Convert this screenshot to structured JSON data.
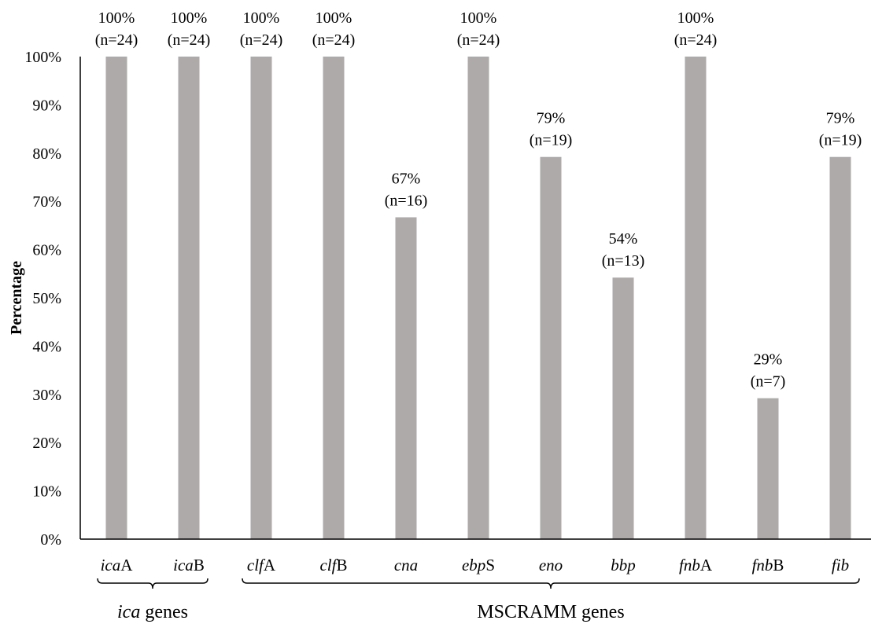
{
  "chart_data": {
    "type": "bar",
    "ylabel": "Percentage",
    "xlabel": "",
    "ylim": [
      0,
      100
    ],
    "y_ticks": [
      "0%",
      "10%",
      "20%",
      "30%",
      "40%",
      "50%",
      "60%",
      "70%",
      "80%",
      "90%",
      "100%"
    ],
    "bar_color": "#aeaaaa",
    "categories": [
      {
        "italic": "ica",
        "plain": "A"
      },
      {
        "italic": "ica",
        "plain": "B"
      },
      {
        "italic": "clf",
        "plain": "A"
      },
      {
        "italic": "clf",
        "plain": "B"
      },
      {
        "italic": "cna",
        "plain": ""
      },
      {
        "italic": "ebp",
        "plain": "S"
      },
      {
        "italic": "eno",
        "plain": ""
      },
      {
        "italic": "bbp",
        "plain": ""
      },
      {
        "italic": "fnb",
        "plain": "A"
      },
      {
        "italic": "fnb",
        "plain": "B"
      },
      {
        "italic": "fib",
        "plain": ""
      }
    ],
    "values": [
      100,
      100,
      100,
      100,
      66.7,
      100,
      79.2,
      54.2,
      100,
      29.2,
      79.2
    ],
    "data_labels": [
      {
        "pct": "100%",
        "n": "(n=24)"
      },
      {
        "pct": "100%",
        "n": "(n=24)"
      },
      {
        "pct": "100%",
        "n": "(n=24)"
      },
      {
        "pct": "100%",
        "n": "(n=24)"
      },
      {
        "pct": "67%",
        "n": "(n=16)"
      },
      {
        "pct": "100%",
        "n": "(n=24)"
      },
      {
        "pct": "79%",
        "n": "(n=19)"
      },
      {
        "pct": "54%",
        "n": "(n=13)"
      },
      {
        "pct": "100%",
        "n": "(n=24)"
      },
      {
        "pct": "29%",
        "n": "(n=7)"
      },
      {
        "pct": "79%",
        "n": "(n=19)"
      }
    ],
    "groups": [
      {
        "italic": "ica",
        "plain": " genes",
        "from": 0,
        "to": 1
      },
      {
        "italic": "",
        "plain": "MSCRAMM genes",
        "from": 2,
        "to": 10
      }
    ],
    "grid": false,
    "legend": "none"
  }
}
